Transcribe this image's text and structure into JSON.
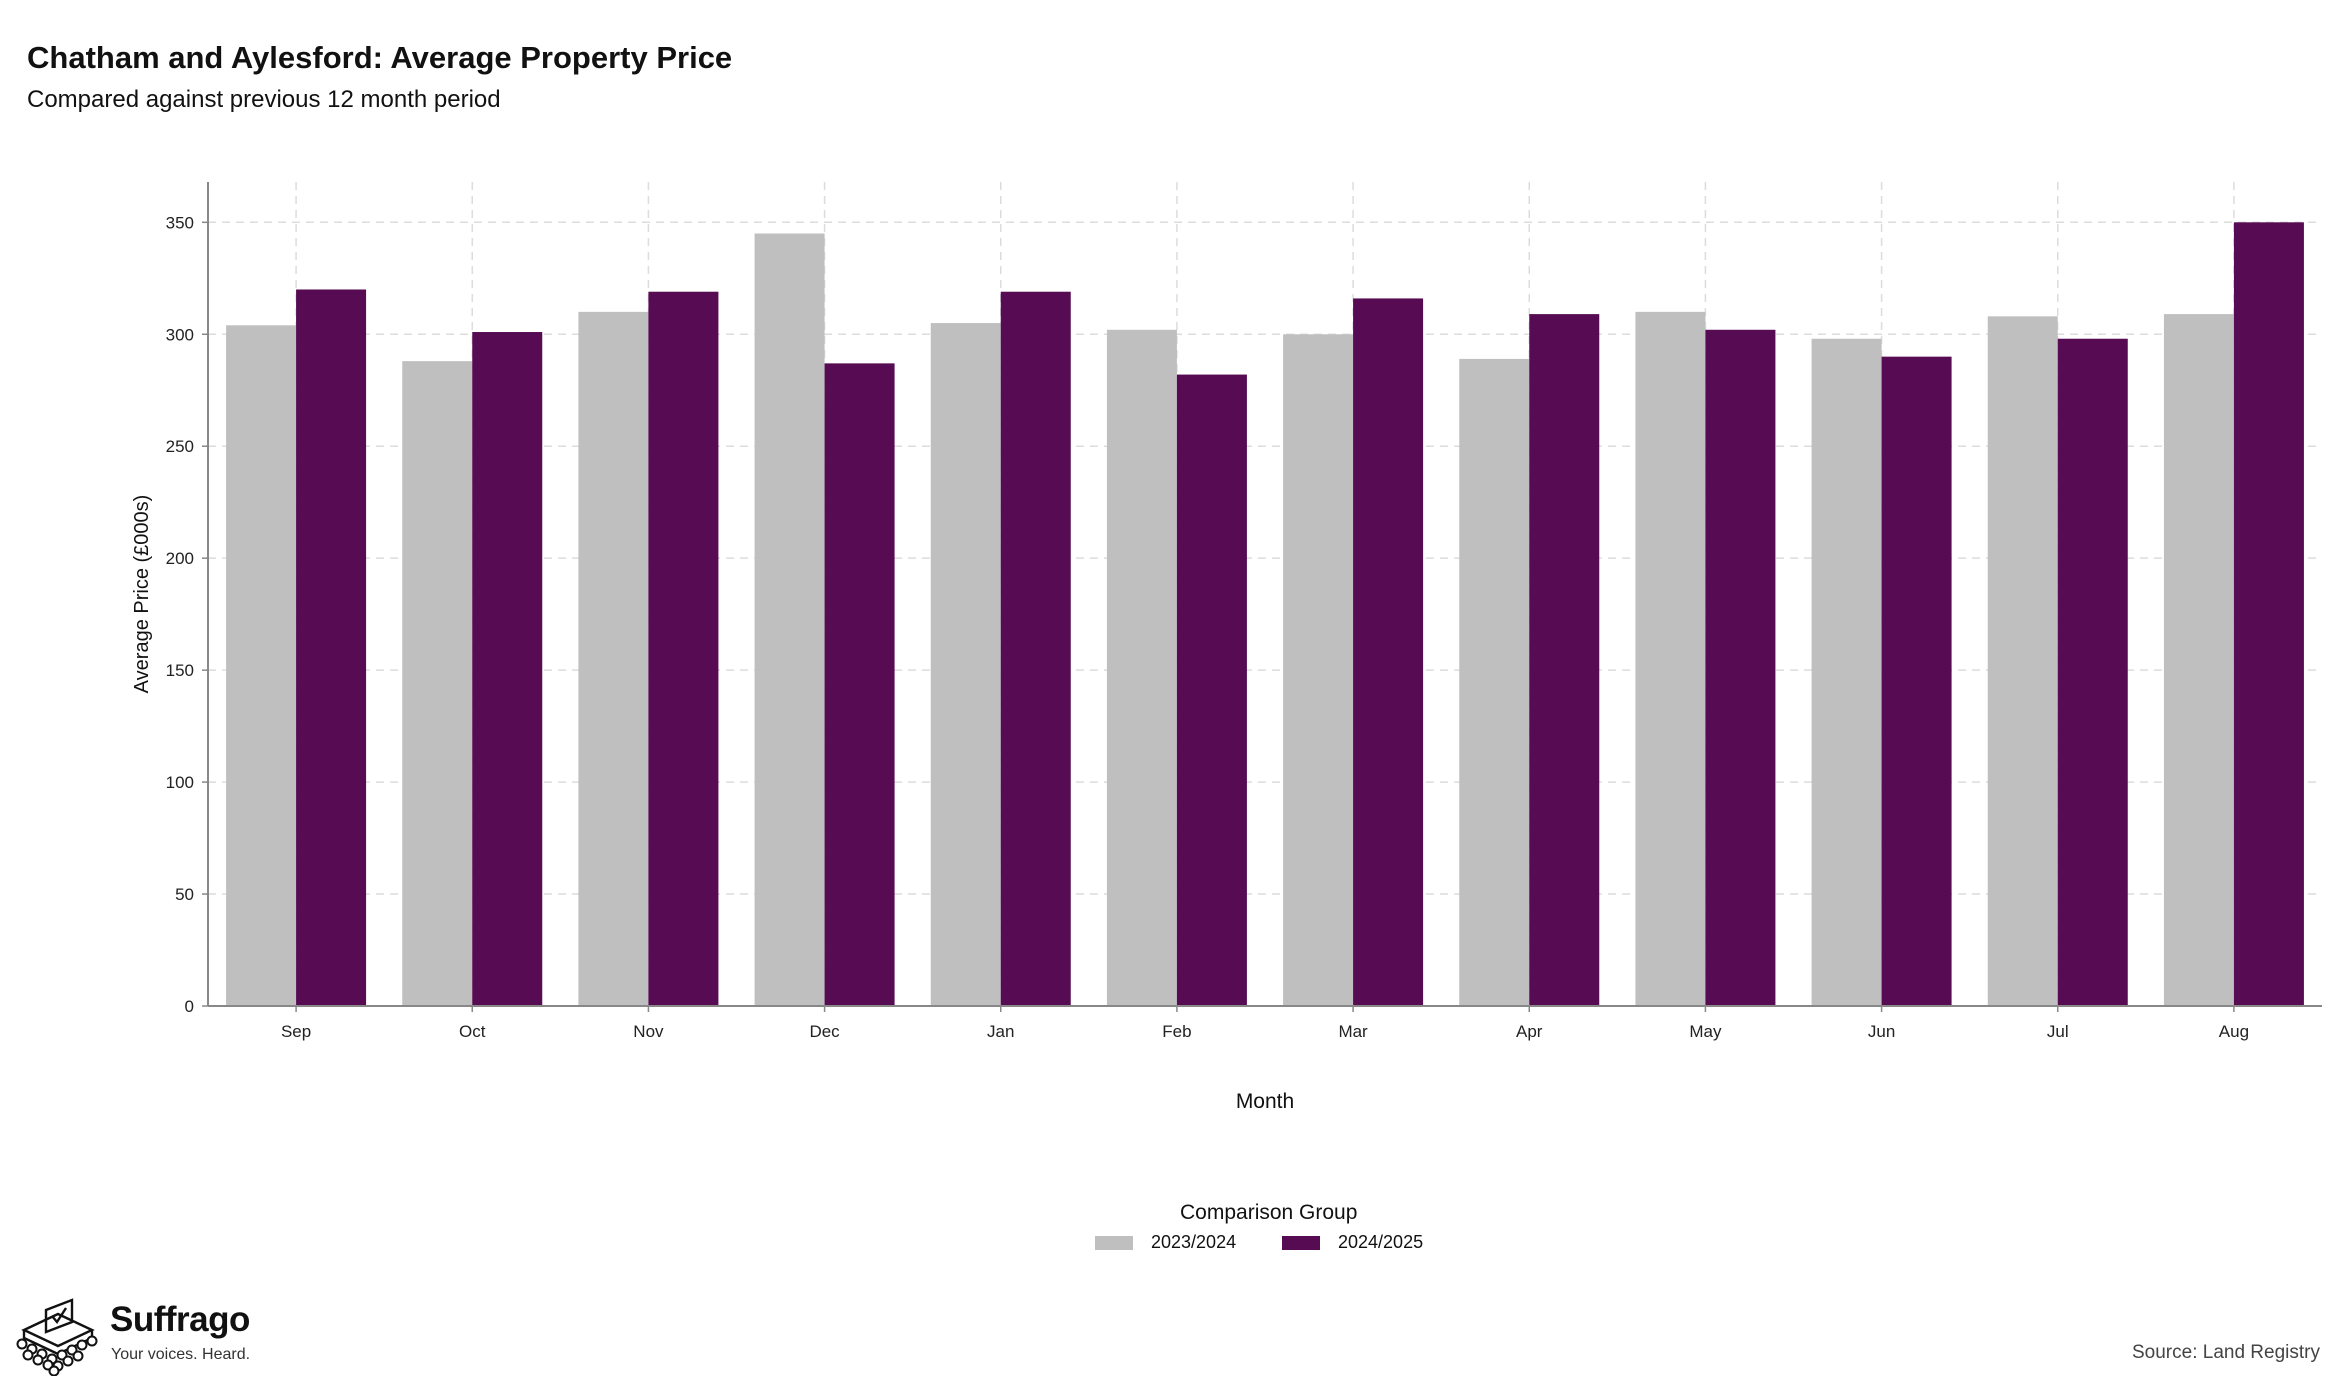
{
  "header": {
    "title": "Chatham and Aylesford: Average Property Price",
    "subtitle": "Compared against previous 12 month period"
  },
  "legend": {
    "title": "Comparison Group"
  },
  "footer": {
    "brand": "Suffrago",
    "tagline": "Your voices. Heard.",
    "source": "Source: Land Registry"
  },
  "chart_data": {
    "type": "bar",
    "xlabel": "Month",
    "ylabel": "Average Price (£000s)",
    "ylim": [
      0,
      368
    ],
    "yticks": [
      0,
      50,
      100,
      150,
      200,
      250,
      300,
      350
    ],
    "grid": true,
    "legend_position": "bottom",
    "categories": [
      "Sep",
      "Oct",
      "Nov",
      "Dec",
      "Jan",
      "Feb",
      "Mar",
      "Apr",
      "May",
      "Jun",
      "Jul",
      "Aug"
    ],
    "series": [
      {
        "name": "2023/2024",
        "color": "#bfbfbf",
        "values": [
          304,
          288,
          310,
          345,
          305,
          302,
          300,
          289,
          310,
          298,
          308,
          309
        ]
      },
      {
        "name": "2024/2025",
        "color": "#560b52",
        "values": [
          320,
          301,
          319,
          287,
          319,
          282,
          316,
          309,
          302,
          290,
          298,
          350
        ]
      }
    ]
  }
}
